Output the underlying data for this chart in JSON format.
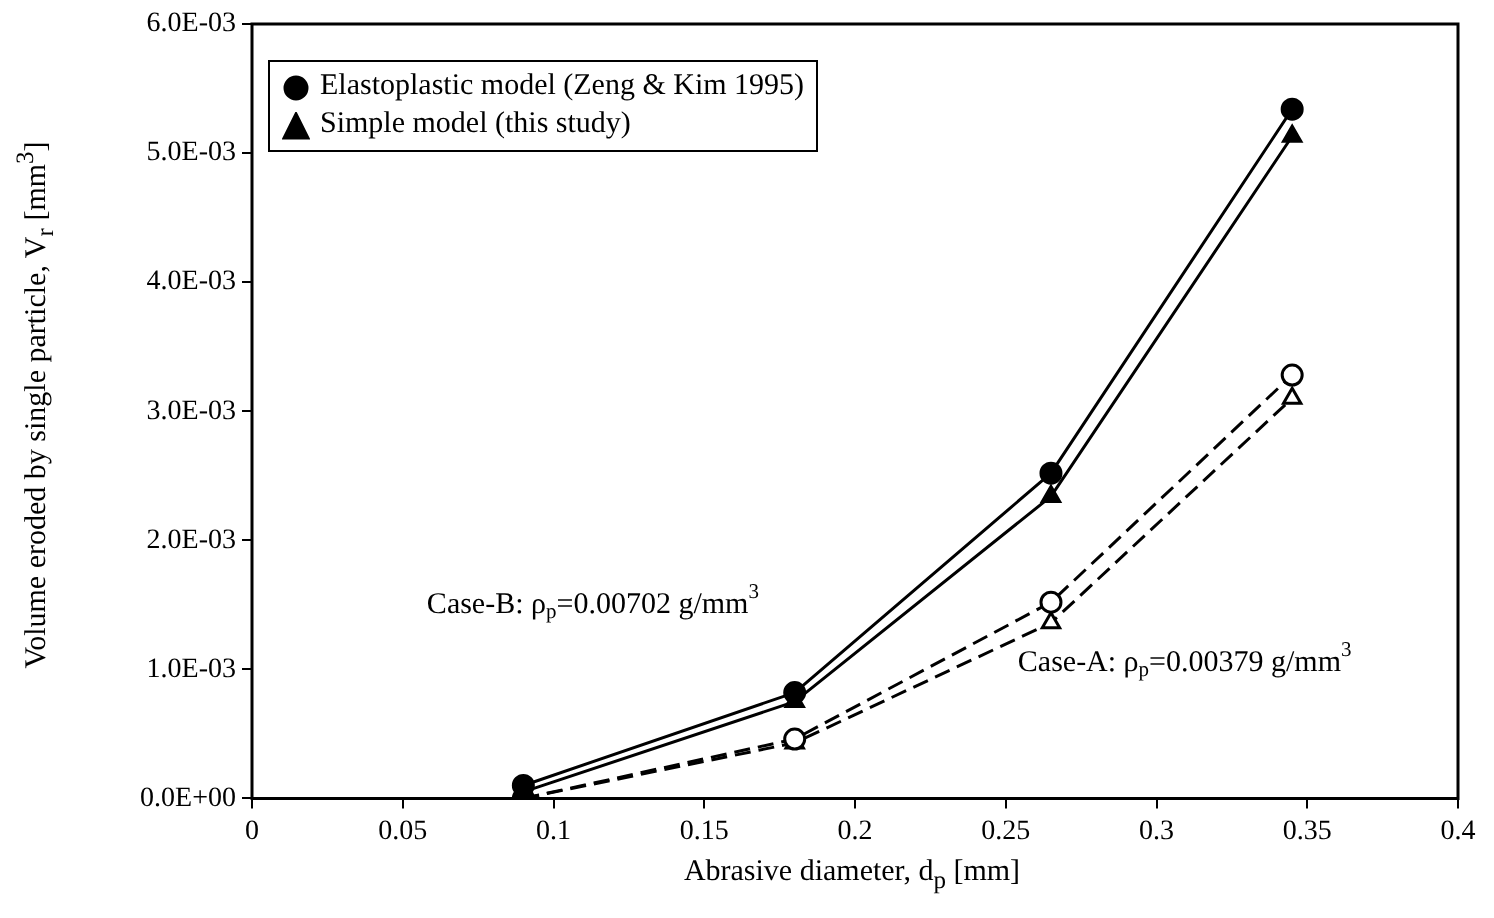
{
  "chart_data": {
    "type": "line",
    "xlabel": "Abrasive diameter, d$_{p}$ [mm]",
    "ylabel": "Volume eroded by single particle, V$_{r}$ [mm$^{3}$]",
    "xlim": [
      0,
      0.4
    ],
    "xticks": [
      0,
      0.05,
      0.1,
      0.15,
      0.2,
      0.25,
      0.3,
      0.35,
      0.4
    ],
    "ylim": [
      0,
      0.006
    ],
    "yticks": [
      {
        "value": 0,
        "label": "0.0E+00"
      },
      {
        "value": 0.001,
        "label": "1.0E-03"
      },
      {
        "value": 0.002,
        "label": "2.0E-03"
      },
      {
        "value": 0.003,
        "label": "3.0E-03"
      },
      {
        "value": 0.004,
        "label": "4.0E-03"
      },
      {
        "value": 0.005,
        "label": "5.0E-03"
      },
      {
        "value": 0.006,
        "label": "6.0E-03"
      }
    ],
    "grid": false,
    "legend": "top left",
    "series": [
      {
        "name": "Elastoplastic model (Zeng & Kim 1995)",
        "color": "#000000",
        "x": [
          0.09,
          0.18,
          0.265,
          0.345
        ],
        "values": [
          0.0001,
          0.00082,
          0.00252,
          0.00534
        ],
        "marker": "circle",
        "line_style": "solid"
      },
      {
        "name": "Simple model (this study)",
        "color": "#000000",
        "x": [
          0.09,
          0.18,
          0.265,
          0.345
        ],
        "values": [
          5e-05,
          0.00075,
          0.00234,
          0.00513
        ],
        "marker": "triangle",
        "line_style": "solid"
      },
      {
        "color": "#000000",
        "x": [
          0.09,
          0.18,
          0.265,
          0.345
        ],
        "values": [
          0,
          0.00046,
          0.00152,
          0.00328
        ],
        "marker": "circle",
        "line_style": "dashed"
      },
      {
        "color": "#000000",
        "x": [
          0.09,
          0.18,
          0.265,
          0.345
        ],
        "values": [
          0,
          0.00043,
          0.00136,
          0.0031
        ],
        "marker": "triangle",
        "line_style": "dashed"
      }
    ],
    "annotations": [
      "Case-B: ρ$_{p}$=0.00702 g/mm$^{3}$",
      "Case-A: ρ$_{p}$=0.00379 g/mm$^{3}$"
    ]
  }
}
